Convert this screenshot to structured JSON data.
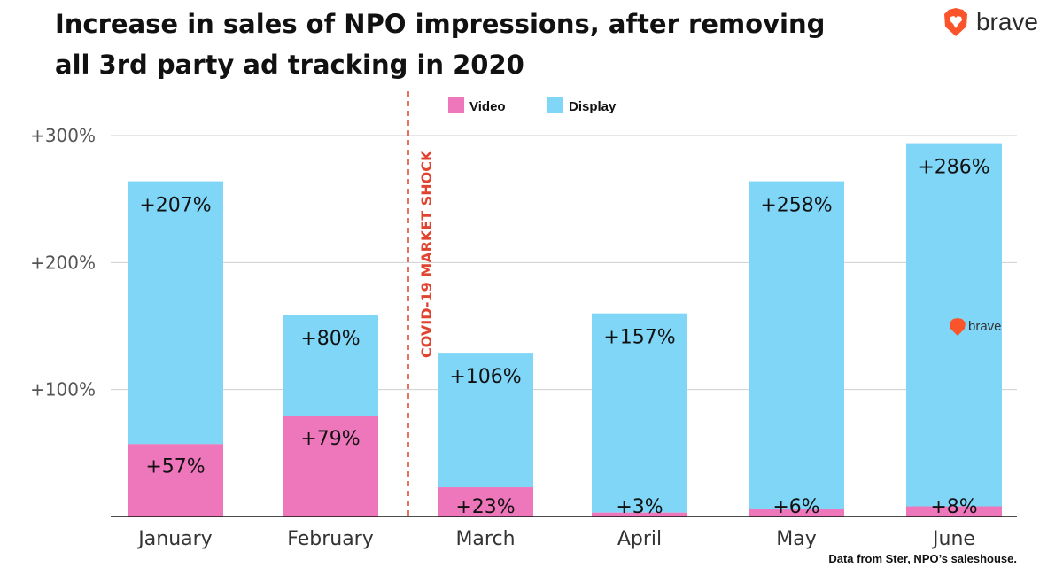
{
  "header": {
    "title_line1": "Increase in sales of NPO impressions, after removing",
    "title_line2": "all 3rd party ad tracking in 2020"
  },
  "brand": {
    "name": "brave",
    "icon": "brave-lion-icon",
    "color": "#fb542b"
  },
  "footnote": "Data from Ster, NPO’s saleshouse.",
  "chart_data": {
    "type": "bar",
    "stacked": true,
    "categories": [
      "January",
      "February",
      "March",
      "April",
      "May",
      "June"
    ],
    "series": [
      {
        "name": "Video",
        "color": "#ee77bb",
        "values": [
          57,
          79,
          23,
          3,
          6,
          8
        ],
        "labels": [
          "+57%",
          "+79%",
          "+23%",
          "+3%",
          "+6%",
          "+8%"
        ]
      },
      {
        "name": "Display",
        "color": "#7fd6f7",
        "values": [
          207,
          80,
          106,
          157,
          258,
          286
        ],
        "labels": [
          "+207%",
          "+80%",
          "+106%",
          "+157%",
          "+258%",
          "+286%"
        ]
      }
    ],
    "yticks": [
      100,
      200,
      300
    ],
    "ytick_labels": [
      "+100%",
      "+200%",
      "+300%"
    ],
    "ylim": [
      0,
      300
    ],
    "grid": true,
    "legend_position": "top-center",
    "annotation": {
      "text": "COVID-19 MARKET SHOCK",
      "between": [
        "February",
        "March"
      ],
      "color": "#e0432f",
      "style": "dashed-vertical-line"
    },
    "watermark": "brave"
  }
}
